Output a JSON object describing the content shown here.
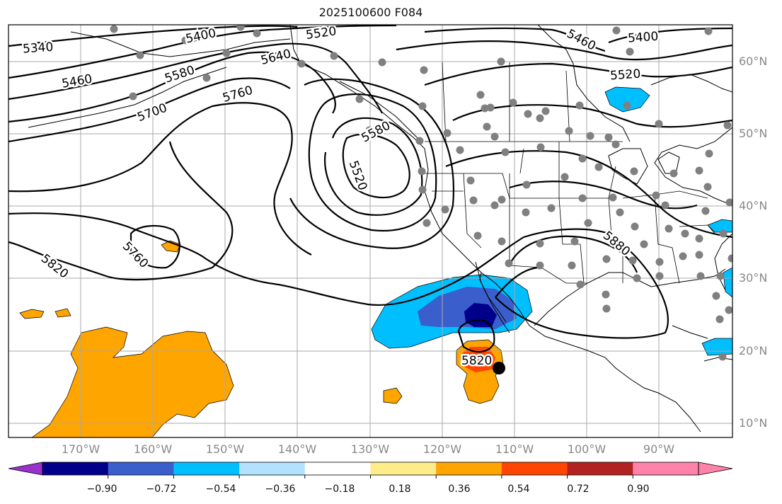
{
  "title": "2025100600 F084",
  "colors": {
    "contour": "#000000",
    "coast": "#000000",
    "grid": "#a9a9a9",
    "station": "#808080",
    "axis_label": "#888888"
  },
  "lon_labels": [
    "170°W",
    "160°W",
    "150°W",
    "140°W",
    "130°W",
    "120°W",
    "110°W",
    "100°W",
    "90°W"
  ],
  "lat_labels": [
    "60°N",
    "50°N",
    "40°N",
    "30°N",
    "20°N",
    "10°N"
  ],
  "contour_labels": [
    "5340",
    "5400",
    "5520",
    "5460",
    "5400",
    "5640",
    "5580",
    "5460",
    "5760",
    "5700",
    "5520",
    "5580",
    "5520",
    "5760",
    "5820",
    "5880",
    "5820"
  ],
  "colorbar": {
    "tick_labels": [
      "−0.90",
      "−0.72",
      "−0.54",
      "−0.36",
      "−0.18",
      "0.18",
      "0.36",
      "0.54",
      "0.72",
      "0.90"
    ],
    "colors": [
      "#9932cc",
      "#00008b",
      "#3a5fcd",
      "#00bfff",
      "#b2e2ff",
      "#ffffff",
      "#ffec8b",
      "#ffa500",
      "#ff4500",
      "#b22222",
      "#ff82ab",
      "#ff82ab"
    ]
  }
}
